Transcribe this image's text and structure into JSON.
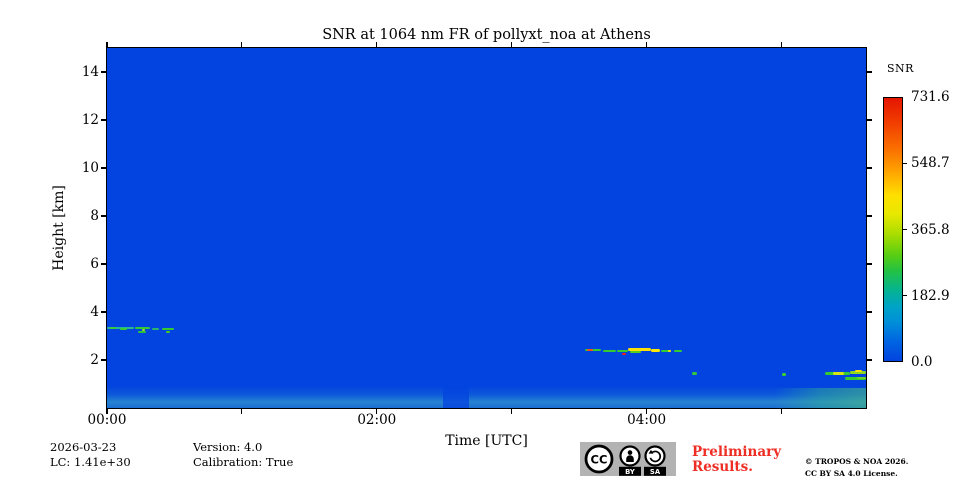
{
  "chart_data": {
    "type": "heatmap",
    "title": "SNR at 1064 nm FR of pollyxt_noa at Athens",
    "xlabel": "Time [UTC]",
    "ylabel": "Height [km]",
    "x_labeled_ticks": [
      {
        "hour": 0,
        "label": "00:00"
      },
      {
        "hour": 2,
        "label": "02:00"
      },
      {
        "hour": 4,
        "label": "04:00"
      }
    ],
    "x_major_tick_hours": [
      0,
      1,
      2,
      3,
      4,
      5
    ],
    "x_range_hours": [
      0,
      5.63
    ],
    "y_tick_km": [
      2,
      4,
      6,
      8,
      10,
      12,
      14
    ],
    "ylim_km": [
      0,
      15
    ],
    "grid": false,
    "background_value": 0.0,
    "background_color": "#0343df",
    "colorbar": {
      "label": "SNR",
      "tick_labels": [
        "731.6",
        "548.7",
        "365.8",
        "182.9",
        "0.0"
      ],
      "tick_values": [
        731.6,
        548.7,
        365.8,
        182.9,
        0.0
      ],
      "gradient_stops": [
        "#e51500 0%",
        "#f24000 10%",
        "#fa7300 20%",
        "#ffaa00 29%",
        "#ffdf00 37%",
        "#e8e800 44%",
        "#a8dc00 52%",
        "#55cd14 60%",
        "#22c146 66%",
        "#06b490 73%",
        "#00a4c4 79%",
        "#0090d8 85%",
        "#0068e2 92%",
        "#0343df 100%"
      ]
    },
    "near_ground_band": {
      "top_km": 0.92,
      "vertical_stops": [
        "rgba(13,95,216,0) 0%",
        "rgba(23,113,214,0.5) 40%",
        "rgba(46,142,206,0.85) 72%",
        "rgba(34,122,206,0.8) 100%"
      ],
      "green_tint": {
        "start_hour": 4.95,
        "stops": [
          "rgba(45,165,150,0) 0%",
          "rgba(50,178,142,0.45) 50%",
          "rgba(73,192,122,0.55) 100%"
        ]
      }
    },
    "data_gap_hours": [
      2.49,
      2.68
    ],
    "features": [
      {
        "t0": 0.0,
        "t1": 0.2,
        "h_km": 3.32,
        "px": 2,
        "color": "#26b694"
      },
      {
        "t0": 0.02,
        "t1": 0.07,
        "h_km": 3.34,
        "px": 2,
        "color": "#38cc38"
      },
      {
        "t0": 0.1,
        "t1": 0.15,
        "h_km": 3.3,
        "px": 2,
        "color": "#38cc38"
      },
      {
        "t0": 0.21,
        "t1": 0.32,
        "h_km": 3.33,
        "px": 2,
        "color": "#34ca34"
      },
      {
        "t0": 0.23,
        "t1": 0.29,
        "h_km": 3.18,
        "px": 2,
        "color": "#2fc040"
      },
      {
        "t0": 0.26,
        "t1": 0.285,
        "h_km": 3.24,
        "px": 2,
        "color": "#a2da1e"
      },
      {
        "t0": 0.33,
        "t1": 0.385,
        "h_km": 3.28,
        "px": 2,
        "color": "#2cb46a"
      },
      {
        "t0": 0.41,
        "t1": 0.5,
        "h_km": 3.3,
        "px": 2,
        "color": "#34ca34"
      },
      {
        "t0": 0.435,
        "t1": 0.465,
        "h_km": 3.16,
        "px": 2,
        "color": "#49cc28"
      },
      {
        "t0": 3.54,
        "t1": 3.66,
        "h_km": 2.41,
        "px": 2,
        "color": "#34ca34"
      },
      {
        "t0": 3.56,
        "t1": 3.6,
        "h_km": 2.41,
        "px": 2,
        "color": "#f25018"
      },
      {
        "t0": 3.68,
        "t1": 3.77,
        "h_km": 2.38,
        "px": 2,
        "color": "#34ca34"
      },
      {
        "t0": 3.78,
        "t1": 3.86,
        "h_km": 2.37,
        "px": 2,
        "color": "#34ca34"
      },
      {
        "t0": 3.82,
        "t1": 3.85,
        "h_km": 2.27,
        "px": 2,
        "color": "#ee2412"
      },
      {
        "t0": 3.86,
        "t1": 4.03,
        "h_km": 2.42,
        "px": 3,
        "color": "#ffe000"
      },
      {
        "t0": 3.88,
        "t1": 3.96,
        "h_km": 2.33,
        "px": 2,
        "color": "#57cf1d"
      },
      {
        "t0": 4.03,
        "t1": 4.1,
        "h_km": 2.4,
        "px": 3,
        "color": "#ffe800"
      },
      {
        "t0": 4.11,
        "t1": 4.18,
        "h_km": 2.38,
        "px": 2,
        "color": "#34ca34"
      },
      {
        "t0": 4.16,
        "t1": 4.18,
        "h_km": 2.38,
        "px": 2,
        "color": "#ffe000"
      },
      {
        "t0": 4.2,
        "t1": 4.26,
        "h_km": 2.37,
        "px": 2,
        "color": "#34ca34"
      },
      {
        "t0": 4.34,
        "t1": 4.37,
        "h_km": 1.44,
        "px": 3,
        "color": "#30c83a"
      },
      {
        "t0": 5.0,
        "t1": 5.035,
        "h_km": 1.38,
        "px": 3,
        "color": "#39d42a"
      },
      {
        "t0": 5.32,
        "t1": 5.51,
        "h_km": 1.42,
        "px": 3,
        "color": "#34ca34"
      },
      {
        "t0": 5.38,
        "t1": 5.46,
        "h_km": 1.44,
        "px": 3,
        "color": "#d8e414"
      },
      {
        "t0": 5.51,
        "t1": 5.63,
        "h_km": 1.5,
        "px": 3,
        "color": "#8fd71e"
      },
      {
        "t0": 5.545,
        "t1": 5.6,
        "h_km": 1.53,
        "px": 2,
        "color": "#ffe000"
      },
      {
        "t0": 5.47,
        "t1": 5.63,
        "h_km": 1.22,
        "px": 3,
        "color": "#34ca34"
      },
      {
        "t0": 5.56,
        "t1": 5.63,
        "h_km": 1.26,
        "px": 2,
        "color": "#6fd024"
      }
    ]
  },
  "footer": {
    "date": "2026-03-23",
    "lc": "LC: 1.41e+30",
    "version": "Version: 4.0",
    "calibration": "Calibration: True",
    "preliminary_line1": "Preliminary",
    "preliminary_line2": "Results.",
    "preliminary_color": "#ee2e24",
    "copyright_line1": "© TROPOS & NOA 2026.",
    "copyright_line2": "CC BY SA 4.0 License."
  },
  "license_badge": {
    "cc": "CC",
    "by": "BY",
    "sa": "SA"
  }
}
